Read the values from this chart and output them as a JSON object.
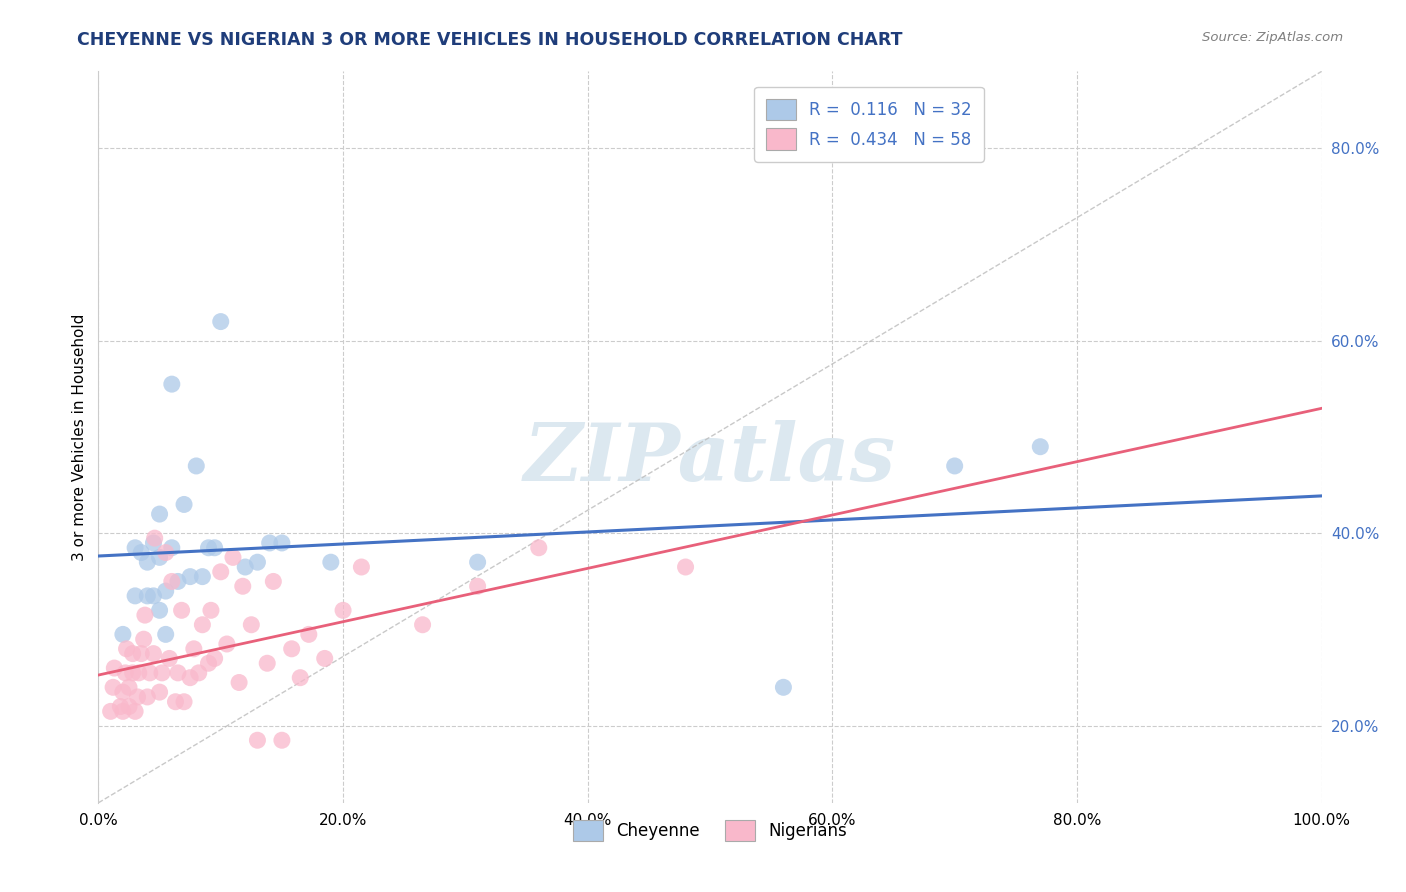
{
  "title": "CHEYENNE VS NIGERIAN 3 OR MORE VEHICLES IN HOUSEHOLD CORRELATION CHART",
  "source_text": "Source: ZipAtlas.com",
  "ylabel": "3 or more Vehicles in Household",
  "xlim": [
    0.0,
    1.0
  ],
  "ylim": [
    0.12,
    0.88
  ],
  "xticks": [
    0.0,
    0.2,
    0.4,
    0.6,
    0.8,
    1.0
  ],
  "xticklabels": [
    "0.0%",
    "20.0%",
    "40.0%",
    "60.0%",
    "80.0%",
    "100.0%"
  ],
  "yticks": [
    0.2,
    0.4,
    0.6,
    0.8
  ],
  "yticklabels": [
    "20.0%",
    "40.0%",
    "60.0%",
    "80.0%"
  ],
  "legend_entries": [
    {
      "label": "Cheyenne",
      "color": "#adc9e8",
      "R": "0.116",
      "N": "32"
    },
    {
      "label": "Nigerians",
      "color": "#f9b8cb",
      "R": "0.434",
      "N": "58"
    }
  ],
  "cheyenne_x": [
    0.02,
    0.03,
    0.03,
    0.035,
    0.04,
    0.04,
    0.045,
    0.045,
    0.05,
    0.05,
    0.05,
    0.055,
    0.055,
    0.06,
    0.06,
    0.065,
    0.07,
    0.075,
    0.08,
    0.085,
    0.09,
    0.095,
    0.1,
    0.12,
    0.13,
    0.14,
    0.15,
    0.19,
    0.31,
    0.56,
    0.7,
    0.77
  ],
  "cheyenne_y": [
    0.295,
    0.385,
    0.335,
    0.38,
    0.335,
    0.37,
    0.335,
    0.39,
    0.32,
    0.375,
    0.42,
    0.295,
    0.34,
    0.385,
    0.555,
    0.35,
    0.43,
    0.355,
    0.47,
    0.355,
    0.385,
    0.385,
    0.62,
    0.365,
    0.37,
    0.39,
    0.39,
    0.37,
    0.37,
    0.24,
    0.47,
    0.49
  ],
  "nigerian_x": [
    0.01,
    0.012,
    0.013,
    0.018,
    0.02,
    0.02,
    0.022,
    0.023,
    0.025,
    0.025,
    0.028,
    0.028,
    0.03,
    0.032,
    0.033,
    0.035,
    0.037,
    0.038,
    0.04,
    0.042,
    0.045,
    0.046,
    0.05,
    0.052,
    0.055,
    0.058,
    0.06,
    0.063,
    0.065,
    0.068,
    0.07,
    0.075,
    0.078,
    0.082,
    0.085,
    0.09,
    0.092,
    0.095,
    0.1,
    0.105,
    0.11,
    0.115,
    0.118,
    0.125,
    0.13,
    0.138,
    0.143,
    0.15,
    0.158,
    0.165,
    0.172,
    0.185,
    0.2,
    0.215,
    0.265,
    0.31,
    0.36,
    0.48
  ],
  "nigerian_y": [
    0.215,
    0.24,
    0.26,
    0.22,
    0.215,
    0.235,
    0.255,
    0.28,
    0.22,
    0.24,
    0.255,
    0.275,
    0.215,
    0.23,
    0.255,
    0.275,
    0.29,
    0.315,
    0.23,
    0.255,
    0.275,
    0.395,
    0.235,
    0.255,
    0.38,
    0.27,
    0.35,
    0.225,
    0.255,
    0.32,
    0.225,
    0.25,
    0.28,
    0.255,
    0.305,
    0.265,
    0.32,
    0.27,
    0.36,
    0.285,
    0.375,
    0.245,
    0.345,
    0.305,
    0.185,
    0.265,
    0.35,
    0.185,
    0.28,
    0.25,
    0.295,
    0.27,
    0.32,
    0.365,
    0.305,
    0.345,
    0.385,
    0.365
  ],
  "cheyenne_line_color": "#4472c4",
  "nigerian_line_color": "#e8607a",
  "diagonal_line_color": "#bbbbbb",
  "background_color": "#ffffff",
  "grid_color": "#cccccc",
  "title_color": "#1f3d7a",
  "label_color": "#4472c4",
  "watermark_text": "ZIPatlas",
  "watermark_color": "#dce8f0"
}
